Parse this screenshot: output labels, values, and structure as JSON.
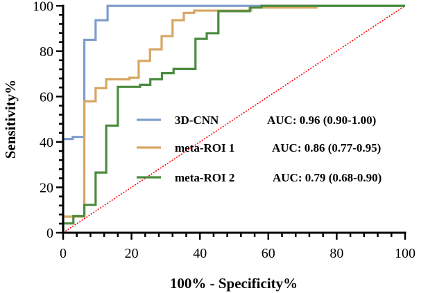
{
  "chart_data": {
    "type": "line",
    "xlabel": "100% - Specificity%",
    "ylabel": "Sensitivity%",
    "xlim": [
      0,
      100
    ],
    "ylim": [
      0,
      100
    ],
    "xticks": [
      0,
      20,
      40,
      60,
      80,
      100
    ],
    "yticks": [
      0,
      20,
      40,
      60,
      80,
      100
    ],
    "grid": false,
    "legend_position": "center-right",
    "series": [
      {
        "name": "3D-CNN",
        "auc": "AUC: 0.96 (0.90-1.00)",
        "color": "#7f9dcc",
        "points": [
          [
            0,
            0
          ],
          [
            0,
            41.3
          ],
          [
            2.8,
            41.3
          ],
          [
            2.8,
            42.2
          ],
          [
            6.2,
            42.2
          ],
          [
            6.2,
            85
          ],
          [
            9.5,
            85
          ],
          [
            9.5,
            93.6
          ],
          [
            13.0,
            93.6
          ],
          [
            13.0,
            100
          ],
          [
            100,
            100
          ]
        ]
      },
      {
        "name": "meta-ROI 1",
        "auc": "AUC: 0.86 (0.77-0.95)",
        "color": "#d6a662",
        "points": [
          [
            0,
            0
          ],
          [
            0,
            7.1
          ],
          [
            6.2,
            7.1
          ],
          [
            6.2,
            57.9
          ],
          [
            9.5,
            57.9
          ],
          [
            9.5,
            63.7
          ],
          [
            12.6,
            63.7
          ],
          [
            12.6,
            67.6
          ],
          [
            19.4,
            67.6
          ],
          [
            19.4,
            68.3
          ],
          [
            22.1,
            68.3
          ],
          [
            22.1,
            75.7
          ],
          [
            25.4,
            75.7
          ],
          [
            25.4,
            80.8
          ],
          [
            28.8,
            80.8
          ],
          [
            28.8,
            86.6
          ],
          [
            32.0,
            86.6
          ],
          [
            32.0,
            93.6
          ],
          [
            35.3,
            93.6
          ],
          [
            35.3,
            96.9
          ],
          [
            38.3,
            96.9
          ],
          [
            38.3,
            97.9
          ],
          [
            55,
            97.9
          ],
          [
            55,
            99.2
          ],
          [
            74.4,
            99.2
          ]
        ]
      },
      {
        "name": "meta-ROI 2",
        "auc": "AUC: 0.79 (0.68-0.90)",
        "color": "#4b8b3f",
        "points": [
          [
            0,
            0
          ],
          [
            0,
            4.1
          ],
          [
            3.0,
            4.1
          ],
          [
            3.0,
            7.4
          ],
          [
            6.2,
            7.4
          ],
          [
            6.2,
            12.3
          ],
          [
            9.5,
            12.3
          ],
          [
            9.5,
            26.5
          ],
          [
            12.6,
            26.5
          ],
          [
            12.6,
            47.2
          ],
          [
            16.0,
            47.2
          ],
          [
            16.0,
            64.3
          ],
          [
            22.5,
            64.3
          ],
          [
            22.5,
            65.2
          ],
          [
            25.5,
            65.2
          ],
          [
            25.5,
            67.6
          ],
          [
            28.9,
            67.6
          ],
          [
            28.9,
            70.3
          ],
          [
            32.3,
            70.3
          ],
          [
            32.3,
            72.2
          ],
          [
            38.7,
            72.2
          ],
          [
            38.7,
            85.4
          ],
          [
            42.0,
            85.4
          ],
          [
            42.0,
            87.9
          ],
          [
            45.4,
            87.9
          ],
          [
            45.4,
            97.6
          ],
          [
            54.6,
            97.6
          ],
          [
            54.6,
            99.2
          ],
          [
            58.0,
            99.2
          ],
          [
            58.0,
            100
          ],
          [
            100,
            100
          ]
        ]
      }
    ],
    "reference_line": {
      "points": [
        [
          0,
          0
        ],
        [
          100,
          100
        ]
      ],
      "color": "#ff0000",
      "style": "dotted"
    }
  }
}
